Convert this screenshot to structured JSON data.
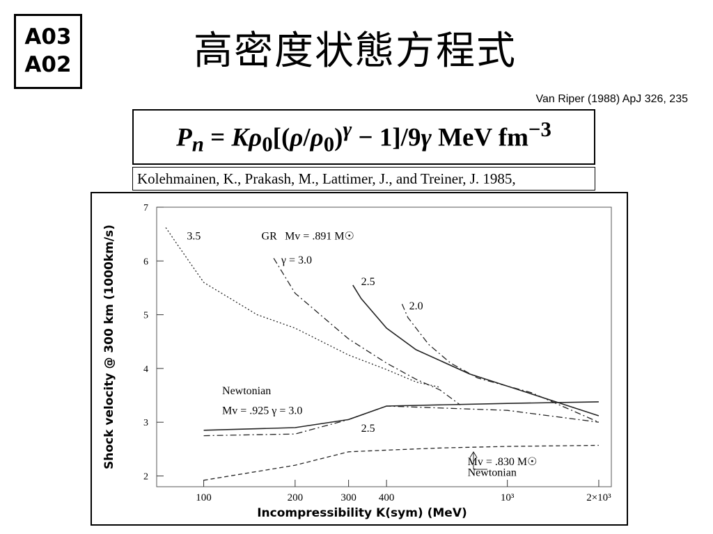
{
  "slide": {
    "code_line1": "A03",
    "code_line2": "A02",
    "title": "高密度状態方程式",
    "citation": "Van Riper (1988) ApJ 326, 235",
    "reference": "Kolehmainen, K., Prakash, M., Lattimer, J., and Treiner, J. 1985,"
  },
  "equation": {
    "lhs": "P",
    "lhs_sub": "n",
    "eq": "=",
    "k": "K",
    "rho0": "ρ",
    "rho0_sub": "0",
    "open": "[(",
    "rho": "ρ",
    "slash": "/",
    "rho_den": "ρ",
    "rho_den_sub": "0",
    "close_paren": ")",
    "gamma_sup": "γ",
    "minus_one": " − 1]/9",
    "gamma": "γ",
    "units": " MeV fm",
    "units_sup": "−3"
  },
  "chart_data": {
    "type": "line",
    "xlabel": "Incompressibility  K(sym)  (MeV)",
    "ylabel": "Shock velocity @ 300 km (1000km/s)",
    "xscale": "log",
    "xlim": [
      70,
      2200
    ],
    "ylim": [
      1.8,
      7.0
    ],
    "x_ticks": [
      {
        "value": 100,
        "label": "100"
      },
      {
        "value": 200,
        "label": "200"
      },
      {
        "value": 300,
        "label": "300"
      },
      {
        "value": 400,
        "label": "400"
      },
      {
        "value": 1000,
        "label": "10³"
      },
      {
        "value": 2000,
        "label": "2×10³"
      }
    ],
    "y_ticks": [
      2,
      3,
      4,
      5,
      6,
      7
    ],
    "grid": false,
    "series": [
      {
        "name": "3.5",
        "group": "GR",
        "style": "dotted",
        "points": [
          [
            75,
            6.62
          ],
          [
            82,
            6.3
          ],
          [
            100,
            5.6
          ],
          [
            150,
            5.0
          ],
          [
            200,
            4.75
          ],
          [
            300,
            4.25
          ],
          [
            400,
            3.98
          ],
          [
            500,
            3.75
          ],
          [
            600,
            3.65
          ]
        ]
      },
      {
        "name": "γ = 3.0",
        "group": "GR",
        "style": "dashdot",
        "points": [
          [
            170,
            6.05
          ],
          [
            200,
            5.4
          ],
          [
            300,
            4.55
          ],
          [
            400,
            4.1
          ],
          [
            500,
            3.8
          ],
          [
            600,
            3.6
          ],
          [
            700,
            3.32
          ]
        ]
      },
      {
        "name": "2.5",
        "group": "GR",
        "style": "solid",
        "points": [
          [
            310,
            5.55
          ],
          [
            330,
            5.3
          ],
          [
            400,
            4.75
          ],
          [
            500,
            4.35
          ],
          [
            750,
            3.9
          ],
          [
            1500,
            3.35
          ],
          [
            2000,
            3.12
          ]
        ]
      },
      {
        "name": "2.0",
        "group": "GR",
        "style": "dashdot",
        "points": [
          [
            450,
            5.2
          ],
          [
            470,
            4.95
          ],
          [
            550,
            4.45
          ],
          [
            650,
            4.1
          ],
          [
            800,
            3.82
          ],
          [
            1200,
            3.55
          ],
          [
            2000,
            3.0
          ]
        ]
      },
      {
        "name": "γ = 3.0",
        "group": "Newtonian",
        "style": "solid",
        "points": [
          [
            100,
            2.85
          ],
          [
            200,
            2.9
          ],
          [
            300,
            3.05
          ],
          [
            400,
            3.3
          ],
          [
            1000,
            3.35
          ],
          [
            2000,
            3.38
          ]
        ]
      },
      {
        "name": "2.5",
        "group": "Newtonian",
        "style": "dashdot",
        "points": [
          [
            100,
            2.75
          ],
          [
            200,
            2.78
          ],
          [
            300,
            3.05
          ],
          [
            400,
            3.3
          ],
          [
            1000,
            3.22
          ],
          [
            2000,
            3.0
          ]
        ]
      },
      {
        "name": "",
        "group": "Newtonian Mv=.830",
        "style": "dashed",
        "points": [
          [
            100,
            1.92
          ],
          [
            200,
            2.2
          ],
          [
            300,
            2.45
          ],
          [
            400,
            2.48
          ],
          [
            600,
            2.52
          ],
          [
            1000,
            2.55
          ],
          [
            2000,
            2.57
          ]
        ]
      }
    ],
    "annotations": [
      {
        "text": "3.5",
        "x": 88,
        "y": 6.4
      },
      {
        "text": "GR",
        "x": 155,
        "y": 6.4
      },
      {
        "text": "Mv = .891 M☉",
        "x": 185,
        "y": 6.4
      },
      {
        "text": "γ = 3.0",
        "x": 180,
        "y": 5.95
      },
      {
        "text": "2.5",
        "x": 330,
        "y": 5.55
      },
      {
        "text": "2.0",
        "x": 475,
        "y": 5.1
      },
      {
        "text": "Newtonian",
        "x": 115,
        "y": 3.52
      },
      {
        "text": "Mv = .925   γ = 3.0",
        "x": 115,
        "y": 3.15
      },
      {
        "text": "2.5",
        "x": 330,
        "y": 2.82
      },
      {
        "text": "Mv = .830 M☉",
        "x": 740,
        "y": 2.2
      },
      {
        "text": "Newtonian",
        "x": 740,
        "y": 2.0
      }
    ]
  }
}
